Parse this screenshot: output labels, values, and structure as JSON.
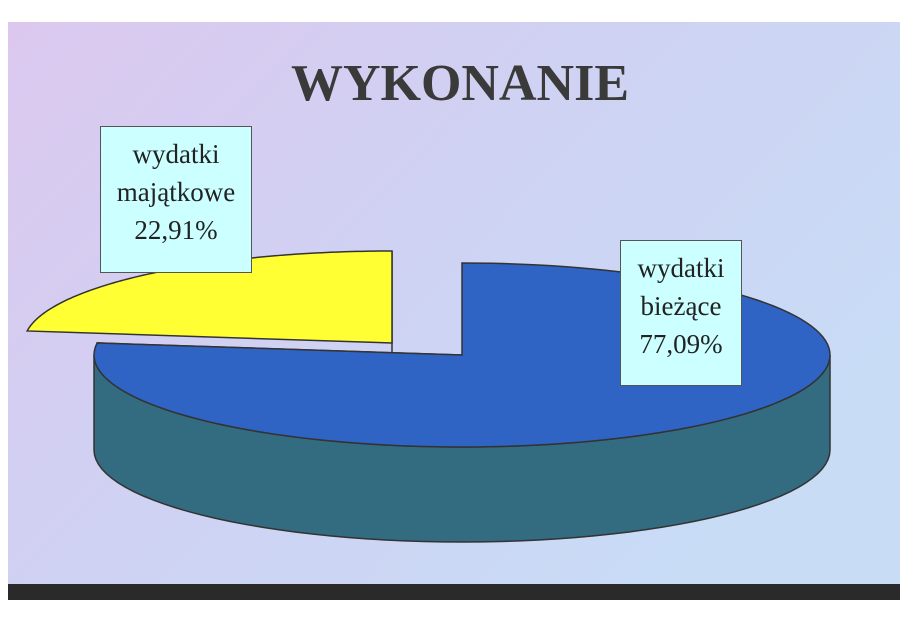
{
  "chart_data": {
    "type": "pie3d",
    "title": "WYKONANIE",
    "categories": [
      "wydatki bieżące",
      "wydatki majątkowe"
    ],
    "values": [
      77.09,
      22.91
    ],
    "value_labels": [
      "77,09%",
      "22,91%"
    ],
    "colors": [
      "#2f63c4",
      "#ffff33"
    ]
  }
}
